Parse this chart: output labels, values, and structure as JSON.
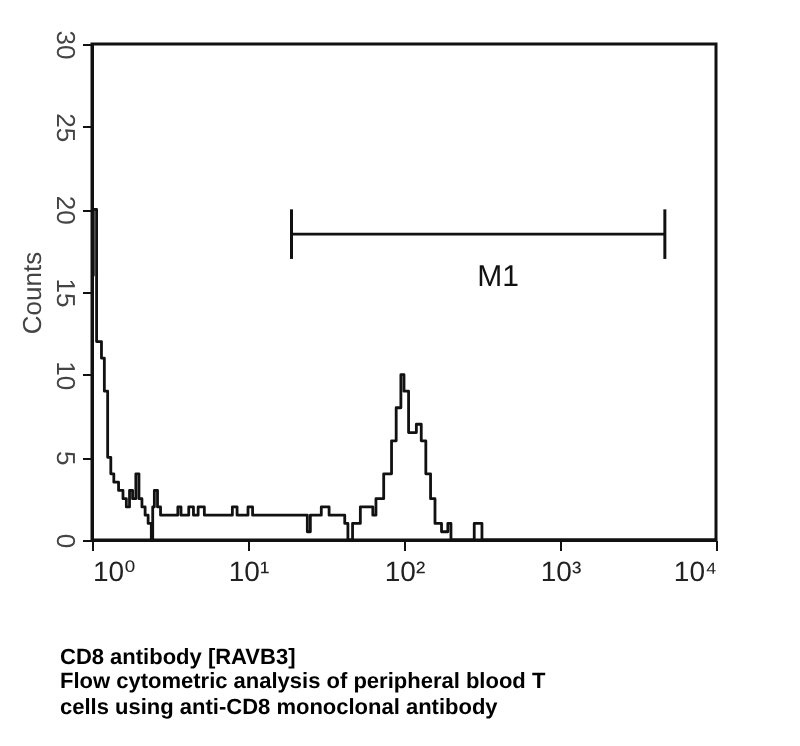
{
  "chart_data": {
    "type": "step",
    "ylabel": "Counts",
    "title": "CD8 antibody [RAVB3]",
    "annotations": [
      "Flow cytometric analysis of peripheral blood T cells using anti-CD8 monoclonal antibody"
    ],
    "log": "x",
    "grid": false,
    "marker": "none",
    "line_style": "solid",
    "xlim": [
      1,
      10000
    ],
    "xticks": [
      {
        "value": 1,
        "label": "10⁰"
      },
      {
        "value": 10,
        "label": "10¹"
      },
      {
        "value": 100,
        "label": "10²"
      },
      {
        "value": 1000,
        "label": "10³"
      },
      {
        "value": 10000,
        "label": "10⁴"
      }
    ],
    "ylim": [
      0,
      30
    ],
    "yticks": [
      0,
      5,
      10,
      15,
      20,
      25,
      30
    ],
    "series": [
      {
        "color": "#111111",
        "x": [
          1,
          1.02,
          1.07,
          1.15,
          1.2,
          1.26,
          1.32,
          1.38,
          1.48,
          1.58,
          1.66,
          1.74,
          1.82,
          1.91,
          2.0,
          2.09,
          2.19,
          2.29,
          2.4,
          2.45,
          2.51,
          2.63,
          2.75,
          3.55,
          3.72,
          4.17,
          4.47,
          4.79,
          5.25,
          7.94,
          8.51,
          10,
          10.7,
          24,
          25.1,
          29.5,
          33.1,
          41.7,
          43.7,
          46.8,
          52.5,
          63.1,
          66.1,
          74.1,
          83.2,
          89.1,
          95.5,
          100,
          107,
          120,
          129,
          138,
          148,
          158,
          174,
          191,
          200,
          282,
          316,
          10000
        ],
        "values": [
          16,
          20,
          12,
          11,
          9,
          5,
          4,
          3.5,
          3,
          2.5,
          2,
          3,
          2.5,
          4,
          2.5,
          2,
          1.5,
          1,
          0,
          2,
          3,
          2,
          1.5,
          2,
          1.5,
          2,
          1.5,
          2,
          1.5,
          2,
          1.5,
          2,
          1.5,
          0.5,
          1.5,
          2,
          1.5,
          1,
          0,
          1,
          2,
          1.5,
          2.5,
          4,
          6,
          8,
          10,
          9,
          6.5,
          7,
          6,
          4,
          2.5,
          1,
          0.5,
          1,
          0,
          1,
          0,
          0
        ]
      },
      {
        "type": "line",
        "name": "M1",
        "color": "#111111",
        "x": [
          19,
          4700
        ],
        "values": [
          18.5,
          18.5
        ],
        "errors": [
          [
            17,
            20
          ],
          [
            17,
            20
          ]
        ]
      }
    ]
  }
}
